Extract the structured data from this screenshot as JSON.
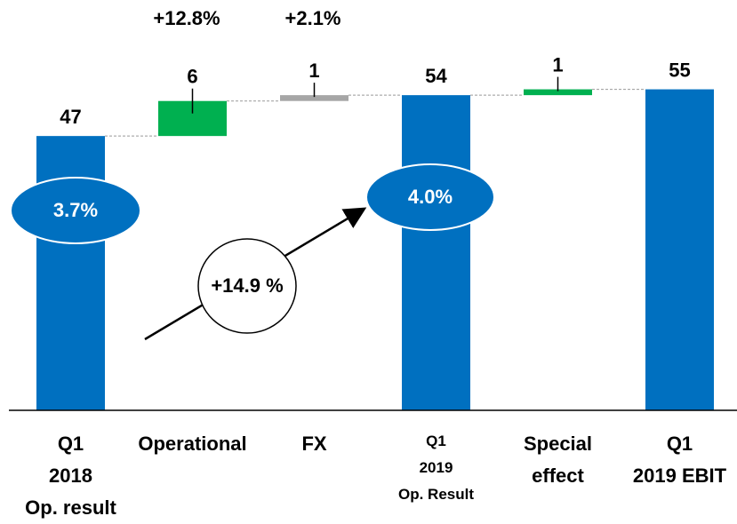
{
  "chart_data": {
    "type": "waterfall",
    "categories": [
      "Q1\n2018\nOp. result",
      "Operational",
      "FX",
      "Q1\n2019\nOp. Result",
      "Special\neffect",
      "Q1\n2019 EBIT"
    ],
    "values": [
      47,
      6,
      1,
      54,
      1,
      55
    ],
    "totals": [
      true,
      false,
      false,
      true,
      false,
      true
    ],
    "colors": [
      "#0070c0",
      "#00b050",
      "#a6a6a6",
      "#0070c0",
      "#00b050",
      "#0070c0"
    ],
    "ylim": [
      0,
      70
    ],
    "annotations": [
      "+12.8%",
      "+2.1%",
      "3.7%",
      "4.0%",
      "+14.9 %"
    ]
  }
}
